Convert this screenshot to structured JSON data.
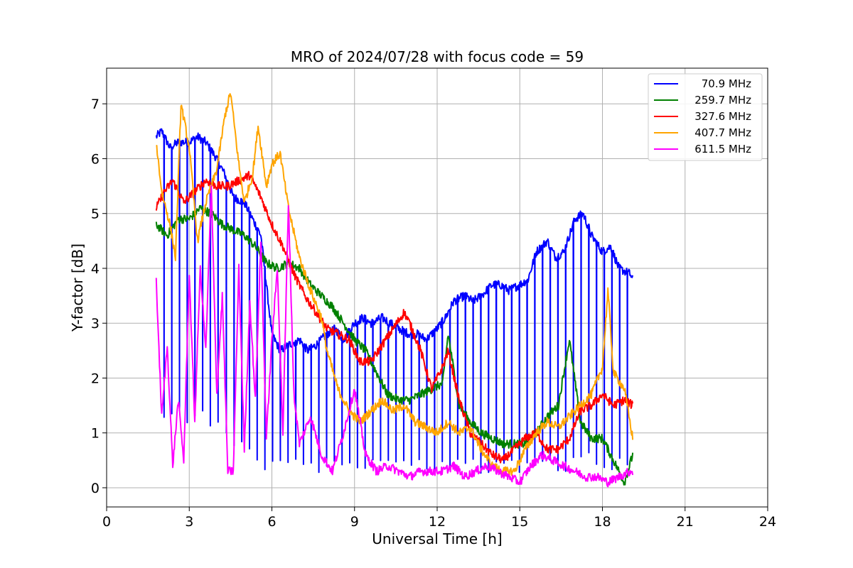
{
  "chart_data": {
    "type": "line",
    "title": "MRO of 2024/07/28 with focus code = 59",
    "xlabel": "Universal Time [h]",
    "ylabel": "Y-factor [dB]",
    "xlim": [
      0,
      24
    ],
    "ylim": [
      -0.35,
      7.65
    ],
    "xticks": [
      0,
      3,
      6,
      9,
      12,
      15,
      18,
      21,
      24
    ],
    "yticks": [
      0,
      1,
      2,
      3,
      4,
      5,
      6,
      7
    ],
    "grid": true,
    "legend_position": "top-right",
    "series": [
      {
        "name": "70.9 MHz",
        "color": "#0000ff",
        "x": [
          1.8,
          2.0,
          2.3,
          2.6,
          3.0,
          3.3,
          3.6,
          4.0,
          4.3,
          4.6,
          5.0,
          5.3,
          5.6,
          6.0,
          6.3,
          6.6,
          7.0,
          7.3,
          7.6,
          8.0,
          8.3,
          8.6,
          9.0,
          9.3,
          9.6,
          10.0,
          10.3,
          10.6,
          11.0,
          11.3,
          11.6,
          12.0,
          12.3,
          12.6,
          13.0,
          13.3,
          13.6,
          14.0,
          14.3,
          14.6,
          15.0,
          15.3,
          15.6,
          16.0,
          16.3,
          16.6,
          17.0,
          17.3,
          17.6,
          18.0,
          18.3,
          18.6,
          19.0,
          19.1
        ],
        "y": [
          6.4,
          6.5,
          6.2,
          6.3,
          6.3,
          6.4,
          6.3,
          6.0,
          5.7,
          5.3,
          5.2,
          4.9,
          4.6,
          2.8,
          2.5,
          2.6,
          2.7,
          2.5,
          2.6,
          2.8,
          2.9,
          2.7,
          3.0,
          3.1,
          3.0,
          3.1,
          3.0,
          2.9,
          2.8,
          2.8,
          2.7,
          2.9,
          3.1,
          3.4,
          3.5,
          3.4,
          3.5,
          3.7,
          3.7,
          3.6,
          3.7,
          3.8,
          4.3,
          4.5,
          4.2,
          4.3,
          4.9,
          5.0,
          4.6,
          4.3,
          4.4,
          4.0,
          3.9,
          3.8
        ],
        "dips_to_y": 0.4,
        "dip_every_h": 0.28
      },
      {
        "name": "259.7 MHz",
        "color": "#008000",
        "x": [
          1.8,
          2.2,
          2.6,
          3.0,
          3.4,
          3.8,
          4.2,
          4.6,
          5.0,
          5.4,
          5.8,
          6.2,
          6.6,
          7.0,
          7.4,
          7.8,
          8.2,
          8.6,
          9.0,
          9.4,
          9.8,
          10.2,
          10.6,
          11.0,
          11.4,
          11.8,
          12.2,
          12.4,
          12.8,
          13.2,
          13.6,
          14.0,
          14.4,
          14.8,
          15.2,
          15.6,
          16.0,
          16.4,
          16.8,
          17.2,
          17.6,
          18.0,
          18.4,
          18.8,
          19.1
        ],
        "y": [
          4.8,
          4.6,
          4.9,
          4.9,
          5.1,
          5.0,
          4.8,
          4.7,
          4.6,
          4.4,
          4.1,
          4.0,
          4.1,
          4.0,
          3.7,
          3.5,
          3.3,
          3.0,
          2.7,
          2.5,
          2.1,
          1.7,
          1.6,
          1.6,
          1.7,
          1.8,
          1.9,
          2.8,
          1.5,
          1.2,
          1.0,
          0.9,
          0.8,
          0.8,
          0.8,
          1.0,
          1.3,
          1.5,
          2.7,
          1.2,
          0.9,
          0.9,
          0.5,
          0.1,
          0.6
        ]
      },
      {
        "name": "327.6 MHz",
        "color": "#ff0000",
        "x": [
          1.8,
          2.1,
          2.4,
          2.8,
          3.2,
          3.6,
          4.0,
          4.4,
          4.8,
          5.2,
          5.6,
          6.0,
          6.4,
          6.8,
          7.2,
          7.6,
          8.0,
          8.4,
          8.8,
          9.2,
          9.6,
          10.0,
          10.4,
          10.8,
          11.0,
          11.4,
          11.8,
          12.2,
          12.4,
          12.8,
          13.2,
          13.6,
          14.0,
          14.4,
          14.8,
          15.2,
          15.6,
          16.0,
          16.4,
          16.8,
          17.2,
          17.6,
          18.0,
          18.4,
          18.8,
          19.1
        ],
        "y": [
          5.1,
          5.4,
          5.6,
          5.2,
          5.4,
          5.6,
          5.5,
          5.5,
          5.6,
          5.7,
          5.3,
          4.8,
          4.4,
          3.9,
          3.5,
          3.2,
          2.9,
          2.8,
          2.7,
          2.3,
          2.3,
          2.6,
          2.9,
          3.2,
          3.0,
          2.5,
          1.8,
          2.2,
          2.5,
          1.6,
          1.0,
          0.8,
          0.6,
          0.5,
          0.7,
          0.9,
          1.0,
          0.7,
          0.7,
          0.9,
          1.4,
          1.5,
          1.7,
          1.5,
          1.6,
          1.5
        ]
      },
      {
        "name": "407.7 MHz",
        "color": "#ffa500",
        "x": [
          1.8,
          2.0,
          2.3,
          2.5,
          2.7,
          3.0,
          3.3,
          3.6,
          4.0,
          4.3,
          4.5,
          4.8,
          5.0,
          5.3,
          5.5,
          5.8,
          6.0,
          6.3,
          6.6,
          7.0,
          7.4,
          7.8,
          8.0,
          8.4,
          8.8,
          9.2,
          9.6,
          10.0,
          10.4,
          10.8,
          11.2,
          11.6,
          12.0,
          12.4,
          12.8,
          13.2,
          13.6,
          14.0,
          14.4,
          14.8,
          15.2,
          15.6,
          16.0,
          16.4,
          16.8,
          17.2,
          17.6,
          18.0,
          18.2,
          18.4,
          18.8,
          19.1
        ],
        "y": [
          6.3,
          5.4,
          4.8,
          4.2,
          7.0,
          6.2,
          4.5,
          5.2,
          5.8,
          6.8,
          7.2,
          5.9,
          5.2,
          5.7,
          6.6,
          5.5,
          5.9,
          6.1,
          5.1,
          4.2,
          3.6,
          3.1,
          2.5,
          1.8,
          1.4,
          1.2,
          1.4,
          1.6,
          1.4,
          1.5,
          1.2,
          1.1,
          1.0,
          1.2,
          1.0,
          1.1,
          0.7,
          0.4,
          0.3,
          0.3,
          0.7,
          1.0,
          1.2,
          1.1,
          1.3,
          1.5,
          1.7,
          2.2,
          3.6,
          2.1,
          1.8,
          0.9
        ]
      },
      {
        "name": "611.5 MHz",
        "color": "#ff00ff",
        "x": [
          1.8,
          1.9,
          2.0,
          2.2,
          2.4,
          2.6,
          2.8,
          3.0,
          3.2,
          3.4,
          3.6,
          3.8,
          4.0,
          4.2,
          4.4,
          4.6,
          4.8,
          5.0,
          5.2,
          5.4,
          5.6,
          5.8,
          6.0,
          6.2,
          6.4,
          6.6,
          6.8,
          7.0,
          7.4,
          7.8,
          8.2,
          8.6,
          9.0,
          9.4,
          9.8,
          10.2,
          10.6,
          11.0,
          11.4,
          11.8,
          12.2,
          12.6,
          13.0,
          13.4,
          13.8,
          14.2,
          14.6,
          15.0,
          15.4,
          15.8,
          16.2,
          16.6,
          17.0,
          17.4,
          17.8,
          18.2,
          18.6,
          19.0,
          19.1
        ],
        "y": [
          3.8,
          2.5,
          1.3,
          2.6,
          0.4,
          1.6,
          0.5,
          3.9,
          1.2,
          4.0,
          2.5,
          5.5,
          1.7,
          3.5,
          0.3,
          0.3,
          4.0,
          0.7,
          3.4,
          1.6,
          4.5,
          0.9,
          2.7,
          4.0,
          1.0,
          5.2,
          1.7,
          0.8,
          1.3,
          0.6,
          0.3,
          1.0,
          1.8,
          0.6,
          0.3,
          0.4,
          0.3,
          0.2,
          0.3,
          0.3,
          0.3,
          0.4,
          0.2,
          0.3,
          0.4,
          0.3,
          0.2,
          0.1,
          0.4,
          0.6,
          0.5,
          0.4,
          0.3,
          0.2,
          0.2,
          0.1,
          0.2,
          0.3,
          0.3
        ]
      }
    ]
  }
}
